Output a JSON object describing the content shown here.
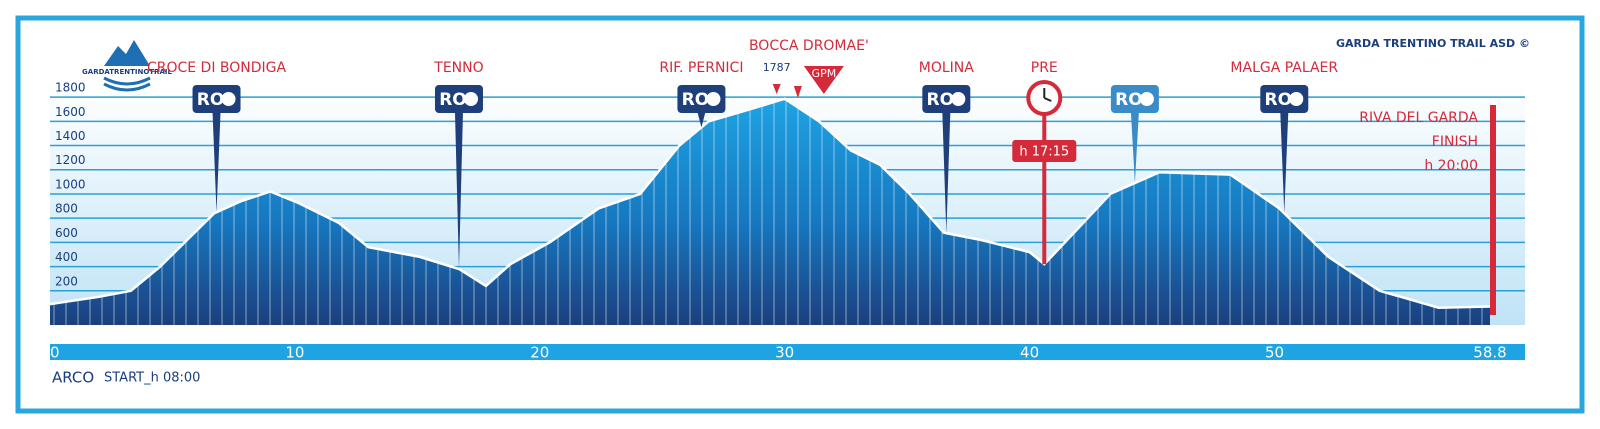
{
  "chart_data": {
    "type": "area",
    "credit": "GARDA TRENTINO TRAIL ASD ©",
    "logo": "GARDATRENTINOTRAIL",
    "start_place": "ARCO",
    "start_time": "START_h 08:00",
    "aid_label": "RO",
    "x": [
      0,
      2,
      3.3,
      4.5,
      5.7,
      6.7,
      7.8,
      9,
      10.2,
      11.8,
      13,
      15.1,
      16.7,
      17.8,
      18.8,
      20.4,
      22.4,
      24.1,
      25.7,
      26.9,
      28.6,
      30,
      31.4,
      32.7,
      33.9,
      35.1,
      36.5,
      38,
      40,
      40.6,
      42,
      43.3,
      45.3,
      48.2,
      50.2,
      52.2,
      54.3,
      56.7,
      58.8
    ],
    "values": [
      90,
      150,
      200,
      400,
      640,
      840,
      940,
      1020,
      920,
      760,
      560,
      480,
      380,
      240,
      420,
      600,
      880,
      1000,
      1400,
      1600,
      1700,
      1787,
      1600,
      1360,
      1240,
      1000,
      680,
      620,
      520,
      420,
      720,
      1000,
      1180,
      1160,
      880,
      480,
      200,
      60,
      70
    ],
    "peak_index": 21,
    "xlim": [
      0,
      58.8
    ],
    "xticks": [
      0,
      10,
      20,
      30,
      40,
      50,
      58.8
    ],
    "ylim": [
      0,
      1900
    ],
    "yticks": [
      200,
      400,
      600,
      800,
      1000,
      1200,
      1400,
      1600,
      1800
    ],
    "grid": true,
    "color": "#1ea3e3",
    "waypoints": [
      {
        "name": "CROCE DI BONDIGA",
        "km": 6.8,
        "icon": "aid"
      },
      {
        "name": "TENNO",
        "km": 16.7,
        "icon": "aid"
      },
      {
        "name": "RIF. PERNICI",
        "km": 26.6,
        "icon": "aid"
      },
      {
        "name": "MOLINA",
        "km": 36.6,
        "icon": "aid"
      },
      {
        "name": "PRE",
        "km": 40.6,
        "icon": "clock",
        "time": "h 17:15"
      },
      {
        "km": 44.3,
        "icon": "water"
      },
      {
        "name": "MALGA PALAER",
        "km": 50.4,
        "icon": "aid"
      }
    ],
    "gpm": {
      "name": "BOCCA DROMAE'",
      "label": "GPM",
      "km": 31.6
    },
    "finish": {
      "lines": [
        "RIVA DEL GARDA",
        "FINISH",
        "h 20:00"
      ],
      "km": 58.8
    }
  }
}
